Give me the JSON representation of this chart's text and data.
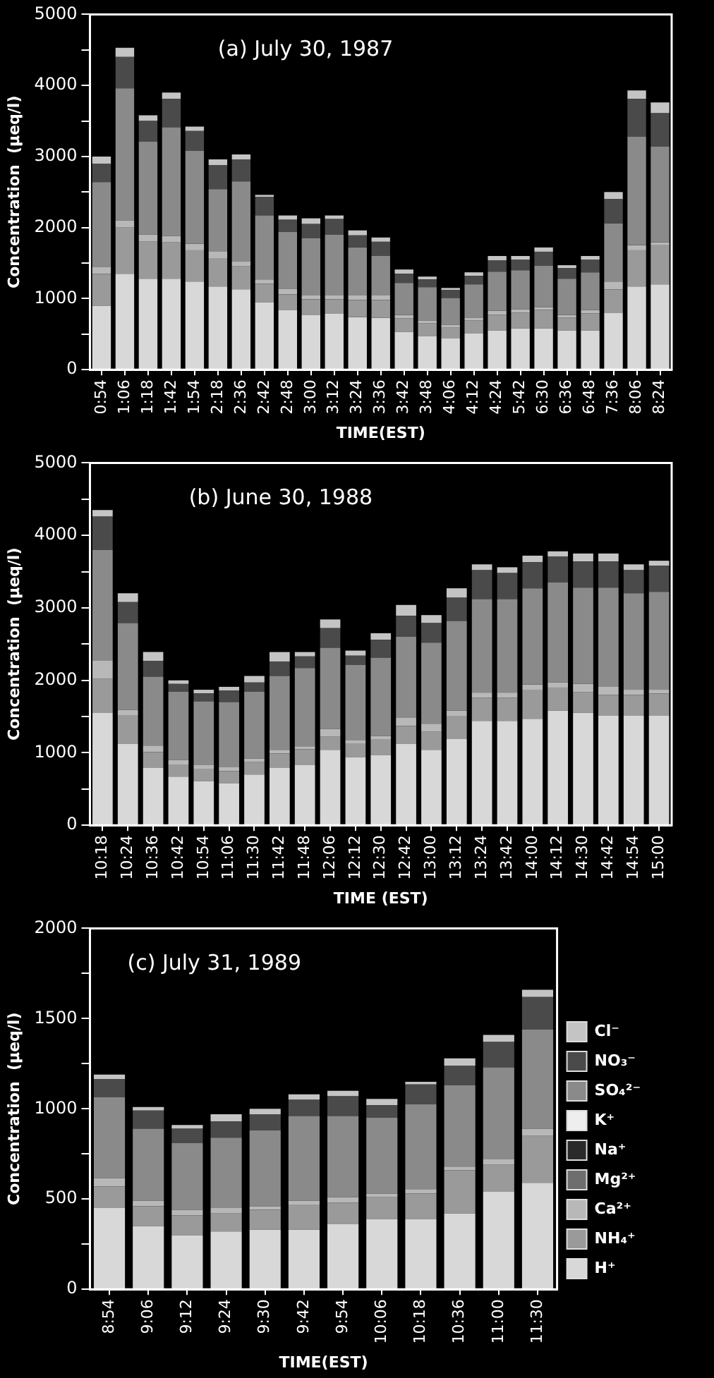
{
  "chart_data": [
    {
      "type": "bar",
      "stacked": true,
      "title": "(a) July 30, 1987",
      "xlabel": "TIME(EST)",
      "ylabel": "Concentration  (µeq/l)",
      "legend": false,
      "grid": false,
      "categories": [
        "0:54",
        "1:06",
        "1:18",
        "1:42",
        "1:54",
        "2:18",
        "2:36",
        "2:42",
        "2:48",
        "3:00",
        "3:12",
        "3:24",
        "3:36",
        "3:42",
        "3:48",
        "4:06",
        "4:12",
        "4:24",
        "5:42",
        "6:30",
        "6:36",
        "6:48",
        "7:36",
        "8:06",
        "8:24"
      ],
      "ylim": [
        0,
        5000
      ],
      "yticks": [
        0,
        {
          "value": 500,
          "label": null
        },
        1000,
        {
          "value": 1500,
          "label": null
        },
        2000,
        {
          "value": 2500,
          "label": null
        },
        3000,
        {
          "value": 3500,
          "label": null
        },
        4000,
        {
          "value": 4500,
          "label": null
        },
        5000
      ],
      "series": [
        {
          "color": "#d8d8d8",
          "values": [
            900,
            1350,
            1280,
            1280,
            1240,
            1170,
            1130,
            950,
            840,
            770,
            790,
            740,
            730,
            530,
            470,
            440,
            510,
            550,
            580,
            580,
            550,
            550,
            800,
            1170,
            1200
          ]
        },
        {
          "color": "#9a9a9a",
          "values": [
            450,
            650,
            520,
            510,
            440,
            400,
            330,
            260,
            220,
            220,
            200,
            240,
            250,
            190,
            180,
            150,
            180,
            220,
            220,
            260,
            180,
            240,
            330,
            510,
            550
          ]
        },
        {
          "color": "#b8b8b8",
          "values": [
            90,
            100,
            100,
            90,
            90,
            90,
            60,
            60,
            80,
            60,
            60,
            70,
            70,
            50,
            40,
            40,
            40,
            60,
            50,
            40,
            40,
            50,
            110,
            70,
            40
          ]
        },
        {
          "color": "#6e6e6e",
          "values": [
            null,
            null,
            null,
            null,
            null,
            null,
            null,
            null,
            null,
            null,
            null,
            null,
            null,
            null,
            null,
            null,
            null,
            null,
            null,
            null,
            null,
            null,
            null,
            null,
            null
          ]
        },
        {
          "color": "#2a2a2a",
          "values": [
            null,
            null,
            null,
            null,
            null,
            null,
            null,
            null,
            null,
            null,
            null,
            null,
            null,
            null,
            null,
            null,
            null,
            null,
            null,
            null,
            null,
            null,
            null,
            null,
            null
          ]
        },
        {
          "color": "#eeeeee",
          "values": [
            null,
            null,
            null,
            null,
            null,
            null,
            null,
            null,
            null,
            null,
            null,
            null,
            null,
            null,
            null,
            null,
            null,
            null,
            null,
            null,
            null,
            null,
            null,
            null,
            null
          ]
        },
        {
          "color": "#8a8a8a",
          "values": [
            1200,
            1860,
            1310,
            1530,
            1310,
            880,
            1130,
            900,
            800,
            800,
            850,
            670,
            550,
            450,
            470,
            380,
            470,
            550,
            550,
            580,
            510,
            530,
            820,
            1530,
            1350
          ]
        },
        {
          "color": "#4a4a4a",
          "values": [
            260,
            440,
            290,
            400,
            280,
            340,
            310,
            260,
            170,
            200,
            220,
            170,
            200,
            130,
            110,
            110,
            120,
            160,
            150,
            200,
            150,
            180,
            340,
            530,
            470
          ]
        },
        {
          "color": "#c4c4c4",
          "values": [
            100,
            130,
            80,
            90,
            60,
            80,
            70,
            30,
            60,
            80,
            50,
            70,
            60,
            60,
            40,
            30,
            50,
            60,
            50,
            60,
            40,
            50,
            100,
            120,
            150
          ]
        }
      ]
    },
    {
      "type": "bar",
      "stacked": true,
      "title": "(b) June 30, 1988",
      "xlabel": "TIME (EST)",
      "ylabel": "Concentration  (µeq/l)",
      "legend": false,
      "grid": false,
      "categories": [
        "10:18",
        "10:24",
        "10:36",
        "10:42",
        "10:54",
        "11:06",
        "11:30",
        "11:42",
        "11:48",
        "12:06",
        "12:12",
        "12:30",
        "12:42",
        "13:00",
        "13:12",
        "13:24",
        "13:42",
        "14:00",
        "14:12",
        "14:30",
        "14:42",
        "14:54",
        "15:00"
      ],
      "ylim": [
        0,
        5000
      ],
      "yticks": [
        0,
        {
          "value": 500,
          "label": null
        },
        1000,
        {
          "value": 1500,
          "label": null
        },
        2000,
        {
          "value": 2500,
          "label": null
        },
        3000,
        {
          "value": 3500,
          "label": null
        },
        4000,
        {
          "value": 4500,
          "label": null
        },
        5000
      ],
      "series": [
        {
          "color": "#d8d8d8",
          "values": [
            1550,
            1120,
            790,
            670,
            610,
            580,
            700,
            790,
            830,
            1040,
            940,
            970,
            1120,
            1040,
            1190,
            1440,
            1440,
            1470,
            1580,
            1550,
            1510,
            1510,
            1510
          ]
        },
        {
          "color": "#9a9a9a",
          "values": [
            470,
            400,
            220,
            170,
            170,
            170,
            170,
            200,
            220,
            180,
            190,
            220,
            250,
            250,
            320,
            320,
            320,
            400,
            320,
            290,
            290,
            290,
            310
          ]
        },
        {
          "color": "#b8b8b8",
          "values": [
            250,
            70,
            90,
            60,
            50,
            50,
            50,
            50,
            40,
            110,
            40,
            40,
            110,
            110,
            70,
            70,
            70,
            70,
            70,
            110,
            110,
            70,
            50
          ]
        },
        {
          "color": "#6e6e6e",
          "values": [
            null,
            null,
            null,
            null,
            null,
            null,
            null,
            null,
            null,
            null,
            null,
            null,
            null,
            null,
            null,
            null,
            null,
            null,
            null,
            null,
            null,
            null,
            null
          ]
        },
        {
          "color": "#2a2a2a",
          "values": [
            null,
            null,
            null,
            null,
            null,
            null,
            null,
            null,
            null,
            null,
            null,
            null,
            null,
            null,
            null,
            null,
            null,
            null,
            null,
            null,
            null,
            null,
            null
          ]
        },
        {
          "color": "#eeeeee",
          "values": [
            null,
            null,
            null,
            null,
            null,
            null,
            null,
            null,
            null,
            null,
            null,
            null,
            null,
            null,
            null,
            null,
            null,
            null,
            null,
            null,
            null,
            null,
            null
          ]
        },
        {
          "color": "#8a8a8a",
          "values": [
            1530,
            1200,
            950,
            940,
            880,
            900,
            920,
            1020,
            1080,
            1120,
            1040,
            1080,
            1120,
            1120,
            1240,
            1290,
            1290,
            1330,
            1380,
            1330,
            1370,
            1330,
            1350
          ]
        },
        {
          "color": "#4a4a4a",
          "values": [
            460,
            290,
            220,
            110,
            110,
            160,
            130,
            200,
            160,
            270,
            130,
            250,
            290,
            270,
            320,
            400,
            360,
            360,
            360,
            360,
            360,
            320,
            360
          ]
        },
        {
          "color": "#c4c4c4",
          "values": [
            90,
            120,
            120,
            50,
            50,
            50,
            90,
            130,
            60,
            120,
            70,
            90,
            150,
            110,
            130,
            80,
            80,
            90,
            70,
            110,
            110,
            80,
            70
          ]
        }
      ]
    },
    {
      "type": "bar",
      "stacked": true,
      "title": "(c) July 31, 1989",
      "xlabel": "TIME(EST)",
      "ylabel": "Concentration  (µeq/l)",
      "legend": "right",
      "grid": false,
      "categories": [
        "8:54",
        "9:06",
        "9:12",
        "9:24",
        "9:30",
        "9:42",
        "9:54",
        "10:06",
        "10:18",
        "10:36",
        "11:00",
        "11:30"
      ],
      "ylim": [
        0,
        2000
      ],
      "yticks": [
        0,
        {
          "value": 250,
          "label": null
        },
        500,
        {
          "value": 750,
          "label": null
        },
        1000,
        {
          "value": 1250,
          "label": null
        },
        1500,
        {
          "value": 1750,
          "label": null
        },
        2000
      ],
      "series": [
        {
          "name": "H⁺",
          "color": "#d8d8d8",
          "values": [
            450,
            350,
            300,
            320,
            330,
            330,
            360,
            390,
            390,
            420,
            540,
            590
          ]
        },
        {
          "name": "NH₄⁺",
          "color": "#9a9a9a",
          "values": [
            120,
            110,
            110,
            100,
            110,
            140,
            120,
            120,
            140,
            240,
            150,
            260
          ]
        },
        {
          "name": "Ca²⁺",
          "color": "#b8b8b8",
          "values": [
            45,
            30,
            30,
            30,
            20,
            20,
            30,
            20,
            25,
            20,
            30,
            40
          ]
        },
        {
          "name": "Mg²⁺",
          "color": "#6e6e6e",
          "values": [
            null,
            null,
            null,
            null,
            null,
            null,
            null,
            null,
            null,
            null,
            null,
            null
          ]
        },
        {
          "name": "Na⁺",
          "color": "#2a2a2a",
          "values": [
            null,
            null,
            null,
            null,
            null,
            null,
            null,
            null,
            null,
            null,
            null,
            null
          ]
        },
        {
          "name": "K⁺",
          "color": "#eeeeee",
          "values": [
            null,
            null,
            null,
            null,
            null,
            null,
            null,
            null,
            null,
            null,
            null,
            null
          ]
        },
        {
          "name": "SO₄²⁻",
          "color": "#8a8a8a",
          "values": [
            450,
            400,
            370,
            390,
            420,
            470,
            450,
            420,
            470,
            450,
            510,
            550
          ]
        },
        {
          "name": "NO₃⁻",
          "color": "#4a4a4a",
          "values": [
            100,
            100,
            80,
            90,
            90,
            90,
            110,
            70,
            110,
            110,
            140,
            180
          ]
        },
        {
          "name": "Cl⁻",
          "color": "#c4c4c4",
          "values": [
            25,
            20,
            20,
            40,
            30,
            30,
            30,
            35,
            15,
            40,
            40,
            40
          ]
        }
      ]
    }
  ]
}
